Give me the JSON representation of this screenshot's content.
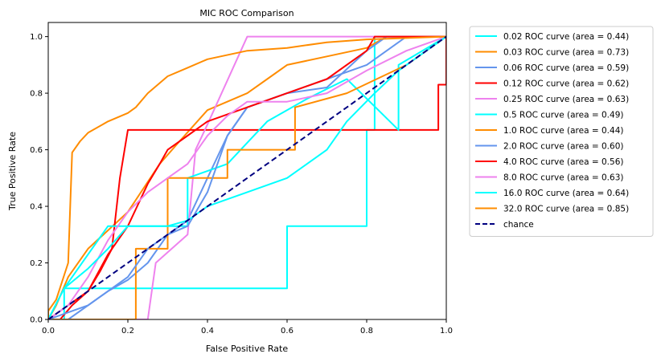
{
  "chart_data": {
    "type": "line",
    "title": "MIC ROC Comparison",
    "xlabel": "False Positive Rate",
    "ylabel": "True Positive Rate",
    "xlim": [
      0.0,
      1.0
    ],
    "ylim": [
      0.0,
      1.05
    ],
    "xticks": [
      "0.0",
      "0.2",
      "0.4",
      "0.6",
      "0.8",
      "1.0"
    ],
    "yticks": [
      "0.0",
      "0.2",
      "0.4",
      "0.6",
      "0.8",
      "1.0"
    ],
    "grid": false,
    "legend_position": "outside-upper-right",
    "series": [
      {
        "name": "0.02 ROC curve (area = 0.44)",
        "color": "#00ffff",
        "points": [
          [
            0,
            0
          ],
          [
            0.04,
            0
          ],
          [
            0.04,
            0.11
          ],
          [
            0.6,
            0.11
          ],
          [
            0.6,
            0.33
          ],
          [
            0.8,
            0.33
          ],
          [
            0.8,
            0.67
          ],
          [
            0.82,
            0.67
          ],
          [
            0.82,
            1
          ],
          [
            1,
            1
          ]
        ]
      },
      {
        "name": "0.03 ROC curve (area = 0.73)",
        "color": "#ff8c00",
        "points": [
          [
            0,
            0
          ],
          [
            0.02,
            0.05
          ],
          [
            0.05,
            0.15
          ],
          [
            0.1,
            0.25
          ],
          [
            0.2,
            0.38
          ],
          [
            0.28,
            0.55
          ],
          [
            0.33,
            0.63
          ],
          [
            0.4,
            0.74
          ],
          [
            0.5,
            0.8
          ],
          [
            0.55,
            0.85
          ],
          [
            0.6,
            0.9
          ],
          [
            0.7,
            0.93
          ],
          [
            0.8,
            0.96
          ],
          [
            0.85,
            1
          ],
          [
            1,
            1
          ]
        ]
      },
      {
        "name": "0.06 ROC curve (area = 0.59)",
        "color": "#6495ed",
        "points": [
          [
            0,
            0
          ],
          [
            0.05,
            0
          ],
          [
            0.1,
            0.05
          ],
          [
            0.15,
            0.1
          ],
          [
            0.2,
            0.14
          ],
          [
            0.25,
            0.2
          ],
          [
            0.3,
            0.3
          ],
          [
            0.35,
            0.35
          ],
          [
            0.4,
            0.5
          ],
          [
            0.45,
            0.65
          ],
          [
            0.5,
            0.75
          ],
          [
            0.6,
            0.8
          ],
          [
            0.7,
            0.85
          ],
          [
            0.8,
            0.9
          ],
          [
            0.9,
            1
          ],
          [
            1,
            1
          ]
        ]
      },
      {
        "name": "0.12 ROC curve (area = 0.62)",
        "color": "#ff0000",
        "points": [
          [
            0,
            0
          ],
          [
            0.03,
            0
          ],
          [
            0.06,
            0.05
          ],
          [
            0.1,
            0.1
          ],
          [
            0.13,
            0.17
          ],
          [
            0.16,
            0.25
          ],
          [
            0.18,
            0.5
          ],
          [
            0.2,
            0.67
          ],
          [
            0.98,
            0.67
          ],
          [
            0.98,
            0.83
          ],
          [
            1,
            0.83
          ],
          [
            1,
            1
          ]
        ]
      },
      {
        "name": "0.25 ROC curve (area = 0.63)",
        "color": "#ee82ee",
        "points": [
          [
            0,
            0
          ],
          [
            0.25,
            0
          ],
          [
            0.27,
            0.2
          ],
          [
            0.35,
            0.3
          ],
          [
            0.37,
            0.6
          ],
          [
            0.4,
            0.69
          ],
          [
            0.5,
            1
          ],
          [
            1,
            1
          ]
        ]
      },
      {
        "name": "0.5 ROC curve (area = 0.49)",
        "color": "#00ffff",
        "points": [
          [
            0,
            0
          ],
          [
            0.04,
            0.11
          ],
          [
            0.15,
            0.33
          ],
          [
            0.35,
            0.33
          ],
          [
            0.35,
            0.5
          ],
          [
            0.45,
            0.55
          ],
          [
            0.55,
            0.7
          ],
          [
            0.65,
            0.78
          ],
          [
            0.75,
            0.85
          ],
          [
            0.88,
            0.67
          ],
          [
            0.88,
            0.9
          ],
          [
            1,
            1
          ]
        ]
      },
      {
        "name": "1.0 ROC curve (area = 0.44)",
        "color": "#ff8c00",
        "points": [
          [
            0,
            0
          ],
          [
            0.22,
            0
          ],
          [
            0.22,
            0.25
          ],
          [
            0.3,
            0.25
          ],
          [
            0.3,
            0.5
          ],
          [
            0.45,
            0.5
          ],
          [
            0.45,
            0.6
          ],
          [
            0.62,
            0.6
          ],
          [
            0.62,
            0.75
          ],
          [
            0.75,
            0.8
          ],
          [
            0.9,
            0.9
          ],
          [
            1,
            1
          ]
        ]
      },
      {
        "name": "2.0 ROC curve (area = 0.60)",
        "color": "#6495ed",
        "points": [
          [
            0,
            0
          ],
          [
            0.1,
            0.05
          ],
          [
            0.2,
            0.15
          ],
          [
            0.25,
            0.25
          ],
          [
            0.3,
            0.3
          ],
          [
            0.35,
            0.33
          ],
          [
            0.4,
            0.45
          ],
          [
            0.45,
            0.65
          ],
          [
            0.5,
            0.75
          ],
          [
            0.6,
            0.8
          ],
          [
            0.7,
            0.82
          ],
          [
            0.8,
            0.95
          ],
          [
            0.85,
            1
          ],
          [
            1,
            1
          ]
        ]
      },
      {
        "name": "4.0 ROC curve (area = 0.56)",
        "color": "#ff0000",
        "points": [
          [
            0,
            0
          ],
          [
            0.1,
            0.1
          ],
          [
            0.15,
            0.23
          ],
          [
            0.2,
            0.33
          ],
          [
            0.25,
            0.48
          ],
          [
            0.28,
            0.55
          ],
          [
            0.3,
            0.6
          ],
          [
            0.35,
            0.65
          ],
          [
            0.4,
            0.7
          ],
          [
            0.5,
            0.75
          ],
          [
            0.6,
            0.8
          ],
          [
            0.7,
            0.85
          ],
          [
            0.8,
            0.95
          ],
          [
            0.82,
            1
          ],
          [
            1,
            1
          ]
        ]
      },
      {
        "name": "8.0 ROC curve (area = 0.63)",
        "color": "#ee82ee",
        "points": [
          [
            0,
            0
          ],
          [
            0.05,
            0.05
          ],
          [
            0.1,
            0.15
          ],
          [
            0.15,
            0.28
          ],
          [
            0.2,
            0.38
          ],
          [
            0.25,
            0.45
          ],
          [
            0.3,
            0.5
          ],
          [
            0.35,
            0.55
          ],
          [
            0.4,
            0.65
          ],
          [
            0.45,
            0.72
          ],
          [
            0.5,
            0.77
          ],
          [
            0.6,
            0.77
          ],
          [
            0.7,
            0.8
          ],
          [
            0.8,
            0.88
          ],
          [
            0.9,
            0.95
          ],
          [
            1,
            1
          ]
        ]
      },
      {
        "name": "16.0 ROC curve (area = 0.64)",
        "color": "#00ffff",
        "points": [
          [
            0,
            0
          ],
          [
            0.04,
            0.11
          ],
          [
            0.1,
            0.18
          ],
          [
            0.15,
            0.25
          ],
          [
            0.2,
            0.33
          ],
          [
            0.3,
            0.33
          ],
          [
            0.35,
            0.35
          ],
          [
            0.4,
            0.4
          ],
          [
            0.5,
            0.45
          ],
          [
            0.6,
            0.5
          ],
          [
            0.65,
            0.55
          ],
          [
            0.7,
            0.6
          ],
          [
            0.75,
            0.7
          ],
          [
            0.82,
            0.8
          ],
          [
            0.88,
            0.88
          ],
          [
            1,
            1
          ]
        ]
      },
      {
        "name": "32.0 ROC curve (area = 0.85)",
        "color": "#ff8c00",
        "points": [
          [
            0,
            0
          ],
          [
            0,
            0.03
          ],
          [
            0.02,
            0.07
          ],
          [
            0.05,
            0.2
          ],
          [
            0.06,
            0.59
          ],
          [
            0.08,
            0.63
          ],
          [
            0.1,
            0.66
          ],
          [
            0.15,
            0.7
          ],
          [
            0.2,
            0.73
          ],
          [
            0.22,
            0.75
          ],
          [
            0.25,
            0.8
          ],
          [
            0.3,
            0.86
          ],
          [
            0.35,
            0.89
          ],
          [
            0.4,
            0.92
          ],
          [
            0.5,
            0.95
          ],
          [
            0.6,
            0.96
          ],
          [
            0.7,
            0.98
          ],
          [
            0.8,
            0.99
          ],
          [
            1,
            1
          ]
        ]
      },
      {
        "name": "chance",
        "color": "#000080",
        "dashed": true,
        "points": [
          [
            0,
            0
          ],
          [
            1,
            1
          ]
        ]
      }
    ]
  }
}
